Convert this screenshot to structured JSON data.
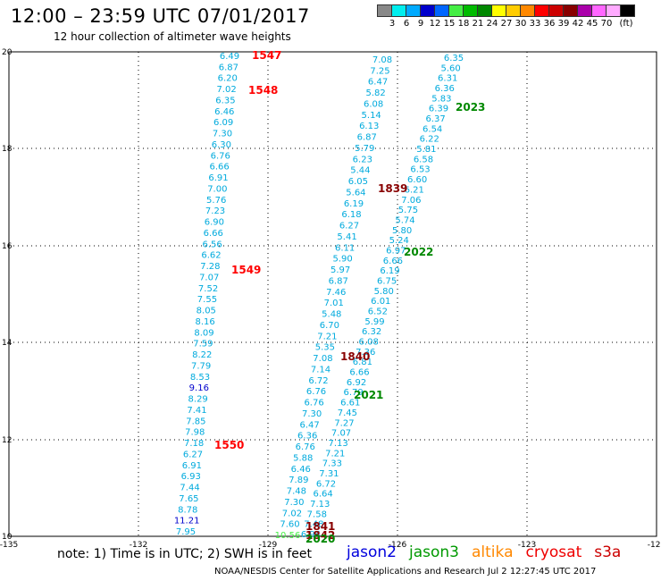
{
  "header": {
    "title": "12:00 – 23:59 UTC 07/01/2017",
    "subtitle": "12 hour collection of altimeter wave heights"
  },
  "legend": {
    "unit": "(ft)",
    "colors": [
      "#888888",
      "#00eeee",
      "#00aaff",
      "#0000cc",
      "#0066ff",
      "#44ee44",
      "#00bb00",
      "#008800",
      "#ffff00",
      "#ffcc00",
      "#ff8800",
      "#ff0000",
      "#cc0000",
      "#880000",
      "#aa00aa",
      "#ff66ff",
      "#ffaaff",
      "#000000"
    ],
    "labels": [
      "3",
      "6",
      "9",
      "12",
      "15",
      "18",
      "21",
      "24",
      "27",
      "30",
      "33",
      "36",
      "39",
      "42",
      "45",
      "70"
    ]
  },
  "axes": {
    "x_ticks": [
      "-135",
      "-132",
      "-129",
      "-126",
      "-123",
      "-120"
    ],
    "y_ticks": [
      "20",
      "18",
      "16",
      "14",
      "12",
      "10"
    ]
  },
  "tracks": [
    {
      "name": "t1547",
      "color": "#00aadd",
      "values": [
        "6.49",
        "6.87",
        "6.20",
        "7.02",
        "6.35",
        "6.46",
        "6.09",
        "7.30",
        "6.30",
        "6.76",
        "6.66",
        "6.91",
        "7.00",
        "5.76",
        "7.23",
        "6.90",
        "6.66",
        "6.56",
        "6.62",
        "7.28",
        "7.07",
        "7.52",
        "7.55",
        "8.05",
        "8.16",
        "8.09",
        "7.59",
        "8.22",
        "7.79",
        "8.53",
        "9.16",
        "8.29",
        "7.41",
        "7.85",
        "7.98",
        "7.18",
        "6.27",
        "6.91",
        "6.93",
        "7.44",
        "7.65",
        "8.78",
        "11.21",
        "7.95"
      ]
    },
    {
      "name": "t1839",
      "color": "#00aadd",
      "values": [
        "7.08",
        "7.25",
        "6.47",
        "5.82",
        "6.08",
        "5.14",
        "6.13",
        "6.87",
        "5.79",
        "6.23",
        "5.44",
        "6.05",
        "5.64",
        "6.19",
        "6.18",
        "6.27",
        "5.41",
        "6.11",
        "5.90",
        "5.97",
        "6.87",
        "7.46",
        "7.01",
        "5.48",
        "6.70",
        "7.21",
        "5.35",
        "7.08",
        "7.14",
        "6.72",
        "6.76",
        "6.76",
        "7.30",
        "6.47",
        "6.36",
        "6.76",
        "5.88",
        "6.46",
        "7.89",
        "7.48",
        "7.30",
        "7.02",
        "7.60",
        "10.56"
      ]
    },
    {
      "name": "t2022",
      "color": "#00aadd",
      "values": [
        "6.35",
        "5.60",
        "6.31",
        "6.36",
        "5.83",
        "6.39",
        "6.37",
        "6.54",
        "6.22",
        "5.81",
        "6.58",
        "6.53",
        "6.60",
        "6.21",
        "7.06",
        "5.75",
        "5.74",
        "5.80",
        "5.24",
        "6.97",
        "6.66",
        "6.19",
        "6.75",
        "5.80",
        "6.01",
        "6.52",
        "5.99",
        "6.32",
        "6.08",
        "7.36",
        "6.81",
        "6.66",
        "6.92",
        "6.79",
        "6.61",
        "7.45",
        "7.27",
        "7.07",
        "7.13",
        "7.21",
        "7.33",
        "7.31",
        "6.72",
        "6.64",
        "7.13",
        "7.58",
        "7.48",
        "6.94"
      ]
    }
  ],
  "labels": [
    {
      "text": "1547",
      "color": "#ff0000"
    },
    {
      "text": "1548",
      "color": "#ff0000"
    },
    {
      "text": "1549",
      "color": "#ff0000"
    },
    {
      "text": "1550",
      "color": "#ff0000"
    },
    {
      "text": "1839",
      "color": "#880000"
    },
    {
      "text": "1840",
      "color": "#880000"
    },
    {
      "text": "1841",
      "color": "#880000"
    },
    {
      "text": "1842",
      "color": "#880000"
    },
    {
      "text": "2023",
      "color": "#008800"
    },
    {
      "text": "2022",
      "color": "#008800"
    },
    {
      "text": "2021",
      "color": "#008800"
    },
    {
      "text": "2020",
      "color": "#008800"
    }
  ],
  "note": "note:  1) Time is in UTC;  2) SWH is in feet",
  "sources": [
    {
      "name": "jason2",
      "color": "#0000dd"
    },
    {
      "name": "jason3",
      "color": "#009900"
    },
    {
      "name": "altika",
      "color": "#ff8800"
    },
    {
      "name": "cryosat",
      "color": "#ee0000"
    },
    {
      "name": "s3a",
      "color": "#cc0000"
    }
  ],
  "footer": "NOAA/NESDIS Center for Satellite Applications and Research     Jul  2 12:27:45 UTC 2017"
}
